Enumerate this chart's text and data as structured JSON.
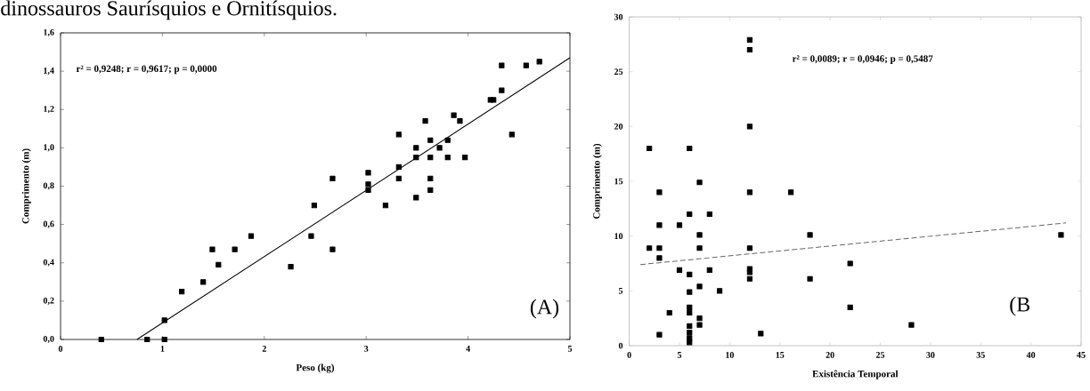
{
  "chart_data": [
    {
      "type": "scatter",
      "xlabel": "Peso (kg)",
      "ylabel": "Comprimento (m)",
      "marker": "square",
      "grid": false,
      "xlim": [
        0,
        5
      ],
      "ylim": [
        0,
        1.6
      ],
      "xticks": [
        0,
        1,
        2,
        3,
        4,
        5
      ],
      "yticks": [
        {
          "value": 0,
          "label": "0,0"
        },
        {
          "value": 0.2,
          "label": "0,2"
        },
        {
          "value": 0.4,
          "label": "0,4"
        },
        {
          "value": 0.6,
          "label": "0,6"
        },
        {
          "value": 0.8,
          "label": "0,8"
        },
        {
          "value": 1.0,
          "label": "1,0"
        },
        {
          "value": 1.2,
          "label": "1,2"
        },
        {
          "value": 1.4,
          "label": "1,4"
        },
        {
          "value": 1.6,
          "label": "1,6"
        }
      ],
      "annotations": [
        "r² = 0,9248; r = 0,9617; p = 0,0000",
        "(A)",
        "dinossauros Saurísquios e Ornitísquios."
      ],
      "series": [
        {
          "color": "#000000",
          "x": [
            0.4,
            0.85,
            1.02,
            1.02,
            1.19,
            1.4,
            1.49,
            1.55,
            1.71,
            1.87,
            2.26,
            2.46,
            2.49,
            2.67,
            2.67,
            3.02,
            3.02,
            3.02,
            3.19,
            3.32,
            3.32,
            3.32,
            3.49,
            3.49,
            3.49,
            3.58,
            3.63,
            3.63,
            3.63,
            3.63,
            3.72,
            3.8,
            3.8,
            3.86,
            3.92,
            3.97,
            4.22,
            4.25,
            4.33,
            4.33,
            4.43,
            4.57,
            4.7
          ],
          "values": [
            0,
            0,
            0,
            0.1,
            0.25,
            0.3,
            0.47,
            0.39,
            0.47,
            0.54,
            0.38,
            0.54,
            0.7,
            0.84,
            0.47,
            0.87,
            0.81,
            0.78,
            0.7,
            1.07,
            0.9,
            0.84,
            1.0,
            0.95,
            0.74,
            1.14,
            1.04,
            0.95,
            0.84,
            0.78,
            1.0,
            1.04,
            0.95,
            1.17,
            1.14,
            0.95,
            1.25,
            1.25,
            1.3,
            1.43,
            1.07,
            1.43,
            1.45
          ]
        },
        {
          "type": "line",
          "color": "#000000",
          "marker": "none",
          "line_style": "solid",
          "x": [
            0.75,
            5
          ],
          "values": [
            0,
            1.47
          ]
        }
      ]
    },
    {
      "type": "scatter",
      "xlabel": "Existência Temporal",
      "ylabel": "Comprimento (m)",
      "marker": "square",
      "grid": false,
      "xlim": [
        0,
        45
      ],
      "ylim": [
        0,
        30
      ],
      "xticks": [
        0,
        5,
        10,
        15,
        20,
        25,
        30,
        35,
        40,
        45
      ],
      "yticks": [
        0,
        5,
        10,
        15,
        20,
        25,
        30
      ],
      "annotations": [
        "r² = 0,0089; r = 0,0946; p = 0,5487",
        "(B"
      ],
      "series": [
        {
          "color": "#000000",
          "x": [
            2,
            2,
            3,
            3,
            3,
            3,
            3,
            4,
            5,
            5,
            6,
            6,
            6,
            6,
            6,
            6,
            6,
            6,
            6,
            6,
            7,
            7,
            7,
            7,
            7,
            7,
            8,
            8,
            9,
            12,
            12,
            12,
            12,
            12,
            12,
            12,
            12,
            13.1,
            16.1,
            18,
            18,
            22,
            22,
            28.1,
            43
          ],
          "values": [
            18.0,
            8.9,
            14.0,
            11.0,
            8.9,
            8.0,
            1.0,
            3.0,
            11.0,
            6.9,
            18.0,
            12.0,
            6.5,
            4.9,
            3.5,
            3.0,
            1.8,
            1.2,
            0.7,
            0.3,
            14.9,
            10.1,
            8.9,
            5.4,
            2.5,
            1.9,
            12.0,
            6.9,
            5.0,
            27.9,
            27.0,
            20.0,
            14.0,
            8.9,
            7.0,
            6.7,
            6.1,
            1.1,
            14.0,
            10.1,
            6.1,
            7.5,
            3.5,
            1.9,
            10.1
          ]
        },
        {
          "type": "line",
          "color": "#666666",
          "marker": "none",
          "line_style": "dashed",
          "x": [
            1.1,
            43.5
          ],
          "values": [
            7.4,
            11.2
          ]
        }
      ]
    }
  ]
}
